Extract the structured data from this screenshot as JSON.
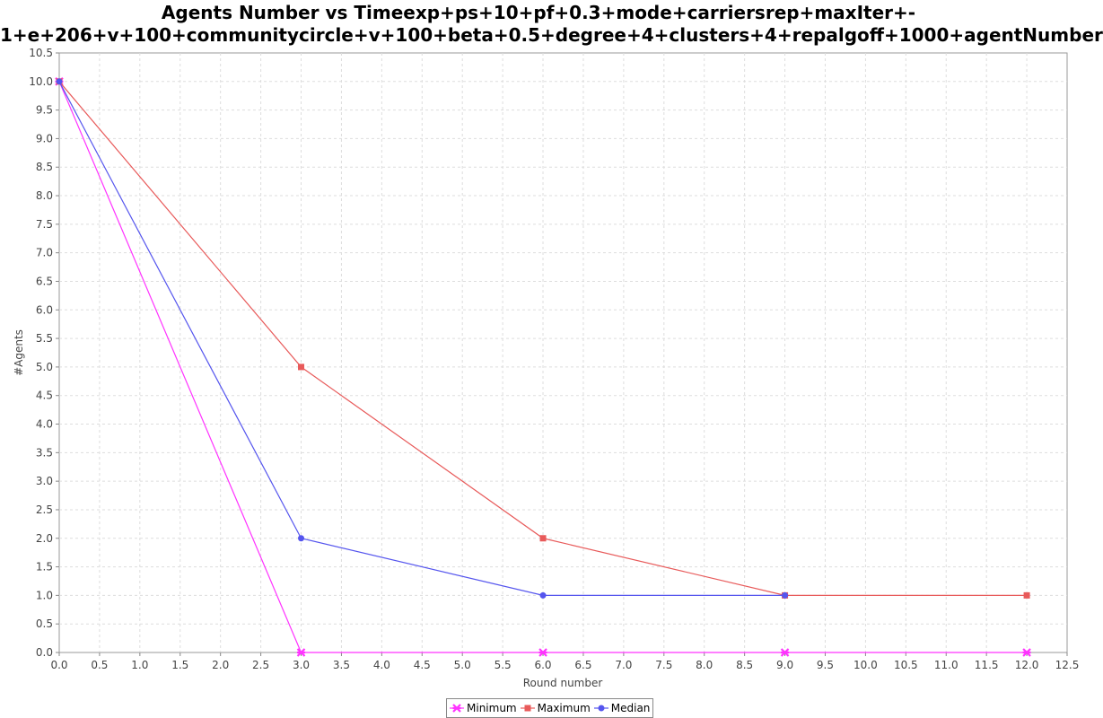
{
  "chart_data": {
    "type": "line",
    "title_lines": [
      "Agents Number vs Timeexp+ps+10+pf+0.3+mode+carriersrep+maxIter+-",
      "1+e+206+v+100+communitycircle+v+100+beta+0.5+degree+4+clusters+4+repalgoff+1000+agentNumber"
    ],
    "xlabel": "Round number",
    "ylabel": "#Agents",
    "xlim": [
      0,
      12.5
    ],
    "ylim": [
      0,
      10.5
    ],
    "x_tick_step": 0.5,
    "y_tick_step": 0.5,
    "grid": true,
    "legend_position": "bottom",
    "series": [
      {
        "name": "Minimum",
        "color": "#ff33ff",
        "marker": "x",
        "points": [
          [
            0,
            10
          ],
          [
            3,
            0
          ],
          [
            6,
            0
          ],
          [
            9,
            0
          ],
          [
            12,
            0
          ]
        ]
      },
      {
        "name": "Maximum",
        "color": "#e85a5a",
        "marker": "square",
        "points": [
          [
            0,
            10
          ],
          [
            3,
            5
          ],
          [
            6,
            2
          ],
          [
            9,
            1
          ],
          [
            12,
            1
          ]
        ]
      },
      {
        "name": "Median",
        "color": "#5555ee",
        "marker": "circle",
        "points": [
          [
            0,
            10
          ],
          [
            3,
            2
          ],
          [
            6,
            1
          ],
          [
            9,
            1
          ]
        ]
      }
    ]
  }
}
